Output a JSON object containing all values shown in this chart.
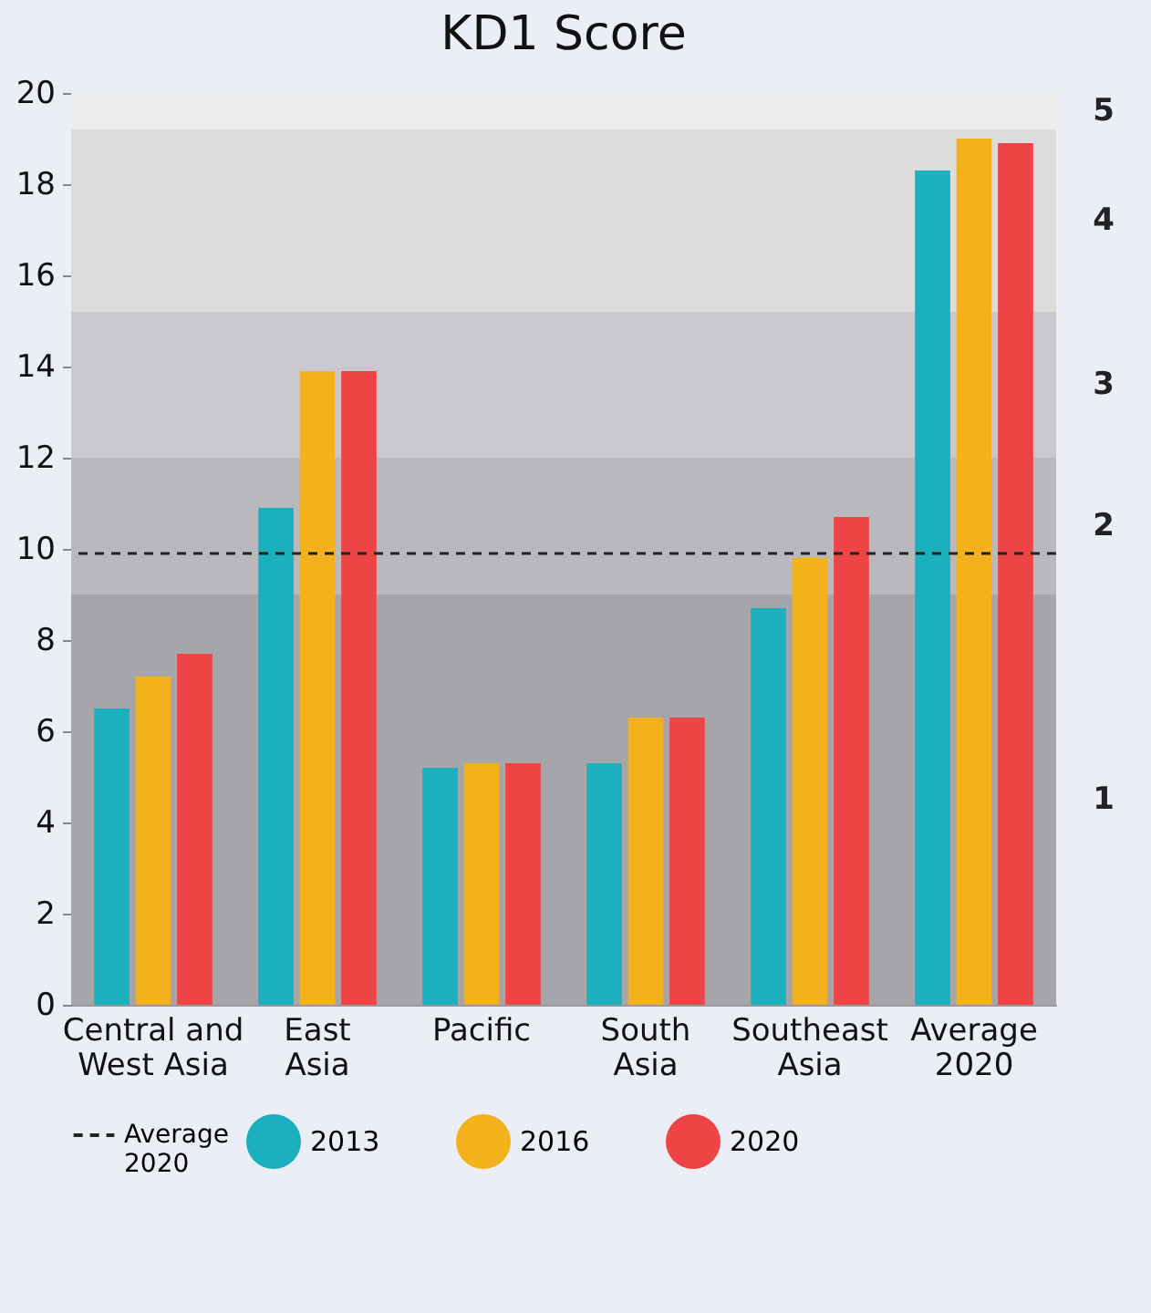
{
  "chart_data": {
    "type": "bar",
    "title": "KD1 Score",
    "categories": [
      "Central and West Asia",
      "East Asia",
      "Pacific",
      "South Asia",
      "Southeast Asia",
      "Average 2020"
    ],
    "series": [
      {
        "name": "2013",
        "color": "#1cb0bf",
        "values": [
          6.5,
          10.9,
          5.2,
          5.3,
          8.7,
          18.3
        ]
      },
      {
        "name": "2016",
        "color": "#f3b21c",
        "values": [
          7.2,
          13.9,
          5.3,
          6.3,
          9.8,
          19.0
        ]
      },
      {
        "name": "2020",
        "color": "#ee4445",
        "values": [
          7.7,
          13.9,
          5.3,
          6.3,
          10.7,
          18.9
        ]
      }
    ],
    "ylim": [
      0,
      20
    ],
    "yticks": [
      0,
      2,
      4,
      6,
      8,
      10,
      12,
      14,
      16,
      18,
      20
    ],
    "grid": false,
    "legend": "bottom",
    "ref_lines": [
      {
        "axis": "y",
        "value": 9.9,
        "label": "Average 2020",
        "color": "#222222",
        "line_style": "dashed"
      }
    ],
    "bands": [
      {
        "axis": "y",
        "from": 0,
        "to": 9,
        "label": "1",
        "color": "#a6a5aa"
      },
      {
        "axis": "y",
        "from": 9,
        "to": 12,
        "label": "2",
        "color": "#b9b8bc"
      },
      {
        "axis": "y",
        "from": 12,
        "to": 15.2,
        "label": "3",
        "color": "#cac8cc"
      },
      {
        "axis": "y",
        "from": 15.2,
        "to": 19.2,
        "label": "4",
        "color": "#dcdcdd"
      },
      {
        "axis": "y",
        "from": 19.2,
        "to": 20,
        "label": "5",
        "color": "#ececed"
      }
    ]
  }
}
